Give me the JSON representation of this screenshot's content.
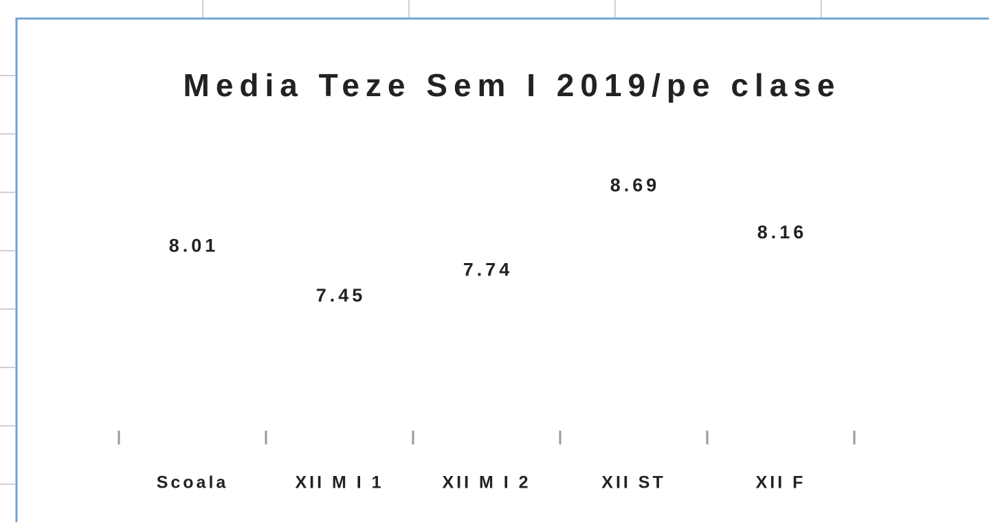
{
  "chart_data": {
    "type": "bar",
    "title": "Media Teze Sem I 2019/pe clase",
    "categories": [
      "Scoala",
      "XII M I 1",
      "XII M I 2",
      "XII ST",
      "XII F"
    ],
    "values": [
      8.01,
      7.45,
      7.74,
      8.69,
      8.16
    ],
    "color": "#ffffff",
    "ylim": [
      6,
      9
    ]
  }
}
